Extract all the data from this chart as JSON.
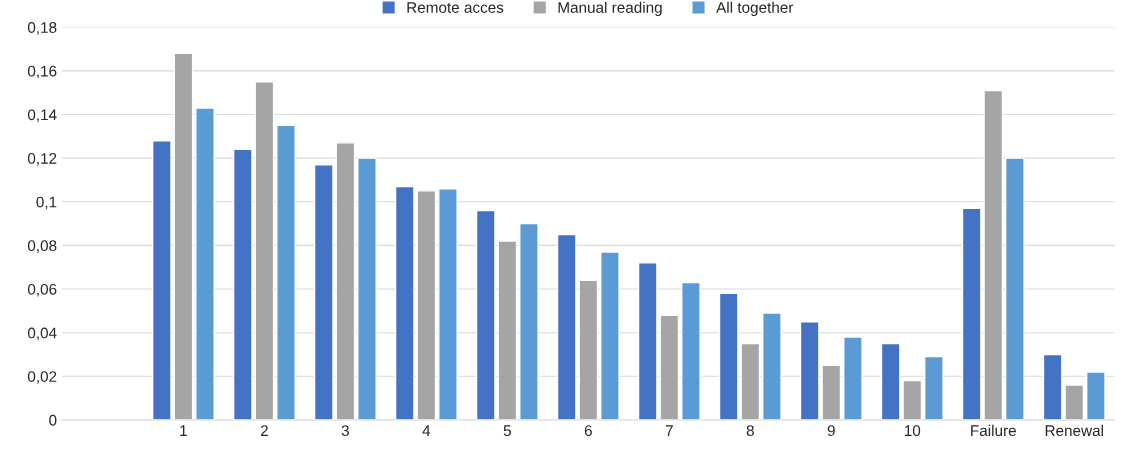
{
  "chart_data": {
    "type": "bar",
    "categories": [
      null,
      "1",
      "2",
      "3",
      "4",
      "5",
      "6",
      "7",
      "8",
      "9",
      "10",
      "Failure",
      "Renewal"
    ],
    "series": [
      {
        "name": "Remote acces",
        "color": "#4472c4",
        "values": [
          null,
          0.128,
          0.124,
          0.117,
          0.107,
          0.096,
          0.085,
          0.072,
          0.058,
          0.045,
          0.035,
          0.097,
          0.03
        ]
      },
      {
        "name": "Manual reading",
        "color": "#a5a5a5",
        "values": [
          null,
          0.168,
          0.155,
          0.127,
          0.105,
          0.082,
          0.064,
          0.048,
          0.035,
          0.025,
          0.018,
          0.151,
          0.016
        ]
      },
      {
        "name": "All together",
        "color": "#5b9bd5",
        "values": [
          null,
          0.143,
          0.135,
          0.12,
          0.106,
          0.09,
          0.077,
          0.063,
          0.049,
          0.038,
          0.029,
          0.12,
          0.022
        ]
      }
    ],
    "ylim": [
      0,
      0.18
    ],
    "yticks": [
      {
        "value": 0,
        "label": "0"
      },
      {
        "value": 0.02,
        "label": "0,02"
      },
      {
        "value": 0.04,
        "label": "0,04"
      },
      {
        "value": 0.06,
        "label": "0,06"
      },
      {
        "value": 0.08,
        "label": "0,08"
      },
      {
        "value": 0.1,
        "label": "0,1"
      },
      {
        "value": 0.12,
        "label": "0,12"
      },
      {
        "value": 0.14,
        "label": "0,14"
      },
      {
        "value": 0.16,
        "label": "0,16"
      },
      {
        "value": 0.18,
        "label": "0,18"
      }
    ],
    "grid": "y",
    "legend": "top"
  }
}
